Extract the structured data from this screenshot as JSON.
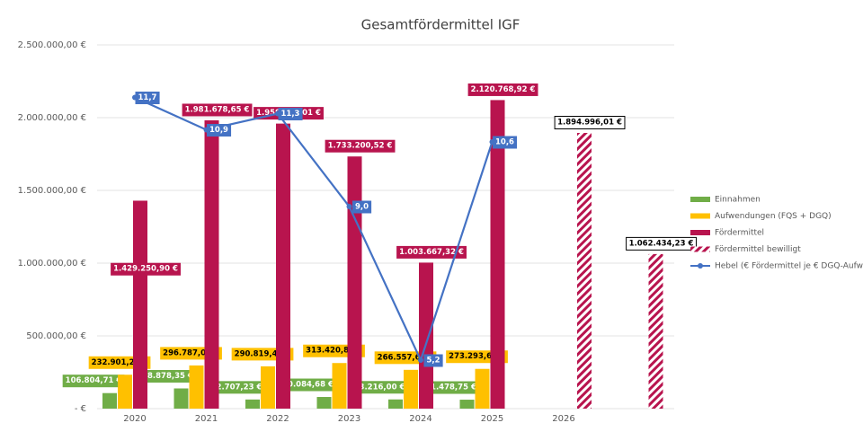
{
  "chart_data": {
    "type": "bar",
    "title": "Gesamtfördermittel IGF",
    "categories": [
      "2020",
      "2021",
      "2022",
      "2023",
      "2024",
      "2025",
      "2026",
      null
    ],
    "ylim": [
      0,
      2500000
    ],
    "yticks": [
      {
        "value": 0,
        "label": "- €"
      },
      {
        "value": 500000,
        "label": "500.000,00 €"
      },
      {
        "value": 1000000,
        "label": "1.000.000,00 €"
      },
      {
        "value": 1500000,
        "label": "1.500.000,00 €"
      },
      {
        "value": 2000000,
        "label": "2.000.000,00 €"
      },
      {
        "value": 2500000,
        "label": "2.500.000,00 €"
      }
    ],
    "y2lim": [
      4,
      13
    ],
    "grid": true,
    "legend": "right",
    "series": [
      {
        "name": "Einnahmen",
        "color": "#70ad47",
        "values": [
          106804.71,
          138878.35,
          62707.23,
          80084.68,
          63216.0,
          61478.75,
          null,
          null
        ],
        "value_labels": [
          "106.804,71 €",
          "138.878,35 €",
          "62.707,23 €",
          "80.084,68 €",
          "63.216,00 €",
          "61.478,75 €",
          null,
          null
        ]
      },
      {
        "name": "Aufwendungen (FQS + DGQ)",
        "color": "#ffc000",
        "values": [
          232901.25,
          296787.05,
          290819.47,
          313420.83,
          266557.65,
          273293.61,
          null,
          null
        ],
        "value_labels": [
          "232.901,25 €",
          "296.787,05 €",
          "290.819,47 €",
          "313.420,83 €",
          "266.557,65 €",
          "273.293,61 €",
          null,
          null
        ]
      },
      {
        "name": "Fördermittel",
        "color": "#b8144e",
        "values": [
          1429250.9,
          1981678.65,
          1959159.01,
          1733200.52,
          1003667.32,
          2120768.92,
          null,
          null
        ],
        "value_labels": [
          "1.429.250,90 €",
          "1.981.678,65 €",
          "1.959.159,01 €",
          "1.733.200,52 €",
          "1.003.667,32 €",
          "2.120.768,92 €",
          null,
          null
        ]
      },
      {
        "name": "Fördermittel bewilligt",
        "color": "#b8144e",
        "pattern": "hatched",
        "values": [
          null,
          null,
          null,
          null,
          null,
          null,
          1894996.01,
          1062434.23
        ],
        "value_labels": [
          null,
          null,
          null,
          null,
          null,
          null,
          "1.894.996,01 €",
          "1.062.434,23 €"
        ]
      },
      {
        "name": "Hebel (€ Fördermittel je € DGQ-Aufwand",
        "color": "#4472c4",
        "type": "line",
        "axis": "y2",
        "values": [
          11.7,
          10.9,
          11.3,
          9.0,
          5.2,
          10.6,
          null,
          null
        ],
        "value_labels": [
          "11,7",
          "10,9",
          "11,3",
          "9,0",
          "5,2",
          "10,6",
          null,
          null
        ]
      }
    ]
  }
}
